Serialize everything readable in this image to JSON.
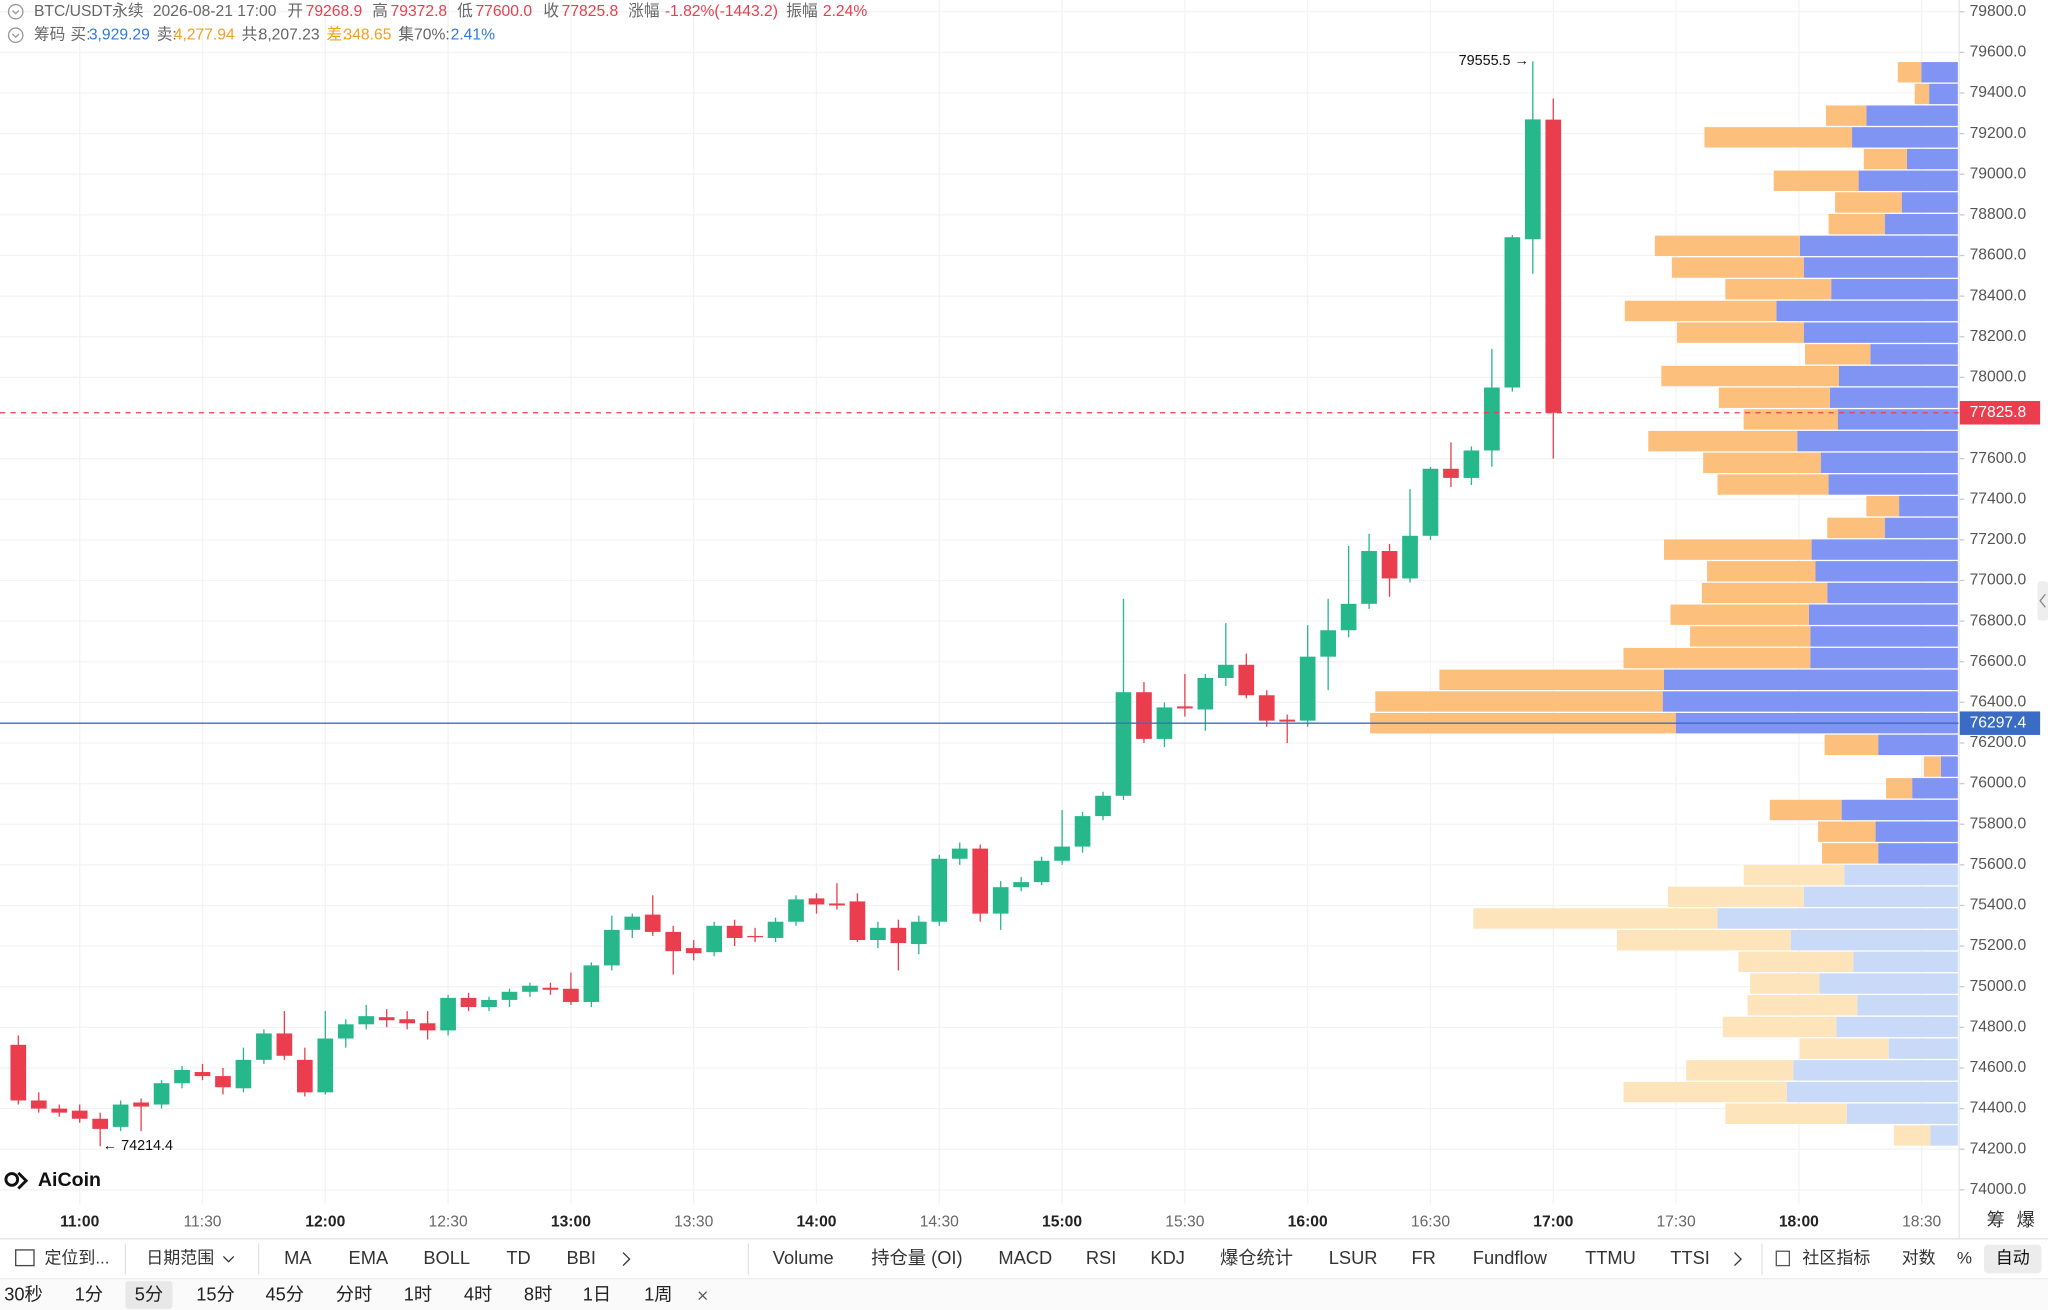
{
  "header": {
    "symbol": "BTC/USDT永续",
    "datetime": "2026-08-21 17:00",
    "open_label": "开",
    "open": "79268.9",
    "high_label": "高",
    "high": "79372.8",
    "low_label": "低",
    "low": "77600.0",
    "close_label": "收",
    "close": "77825.8",
    "change_label": "涨幅",
    "change": "-1.82%(-1443.2)",
    "amplitude_label": "振幅",
    "amplitude": "2.24%",
    "chip_label": "筹码",
    "buy_label": "买:",
    "buy": "3,929.29",
    "sell_label": "卖:",
    "sell": "4,277.94",
    "total_label": "共:",
    "total": "8,207.23",
    "diff_label": "差:",
    "diff": "348.65",
    "concentration_label": "集70%:",
    "concentration": "2.41%"
  },
  "chart_data": {
    "type": "candlestick",
    "x": [
      "10:45",
      "10:50",
      "10:55",
      "11:00",
      "11:05",
      "11:10",
      "11:15",
      "11:20",
      "11:25",
      "11:30",
      "11:35",
      "11:40",
      "11:45",
      "11:50",
      "11:55",
      "12:00",
      "12:05",
      "12:10",
      "12:15",
      "12:20",
      "12:25",
      "12:30",
      "12:35",
      "12:40",
      "12:45",
      "12:50",
      "12:55",
      "13:00",
      "13:05",
      "13:10",
      "13:15",
      "13:20",
      "13:25",
      "13:30",
      "13:35",
      "13:40",
      "13:45",
      "13:50",
      "13:55",
      "14:00",
      "14:05",
      "14:10",
      "14:15",
      "14:20",
      "14:25",
      "14:30",
      "14:35",
      "14:40",
      "14:45",
      "14:50",
      "14:55",
      "15:00",
      "15:05",
      "15:10",
      "15:15",
      "15:20",
      "15:25",
      "15:30",
      "15:35",
      "15:40",
      "15:45",
      "15:50",
      "15:55",
      "16:00",
      "16:05",
      "16:10",
      "16:15",
      "16:20",
      "16:25",
      "16:30",
      "16:35",
      "16:40",
      "16:45",
      "16:50",
      "16:55",
      "17:00"
    ],
    "open": [
      74714,
      74440,
      74400,
      74390,
      74350,
      74310,
      74430,
      74420,
      74525,
      74580,
      74560,
      74500,
      74640,
      74770,
      74640,
      74480,
      74745,
      74815,
      74850,
      74840,
      74820,
      74785,
      74945,
      74900,
      74935,
      74975,
      74995,
      74990,
      74925,
      75105,
      75280,
      75355,
      75270,
      75190,
      75170,
      75300,
      75250,
      75240,
      75320,
      75435,
      75410,
      75420,
      75230,
      75290,
      75210,
      75320,
      75630,
      75680,
      75360,
      75490,
      75515,
      75620,
      75690,
      75840,
      75940,
      76450,
      76220,
      76380,
      76365,
      76520,
      76585,
      76435,
      76315,
      76310,
      76625,
      76755,
      76885,
      77145,
      77010,
      77220,
      77550,
      77505,
      77640,
      77950,
      78680,
      79268.9
    ],
    "high": [
      74760,
      74480,
      74420,
      74420,
      74380,
      74440,
      74450,
      74540,
      74610,
      74620,
      74600,
      74700,
      74790,
      74880,
      74700,
      74880,
      74840,
      74910,
      74890,
      74880,
      74880,
      74960,
      74970,
      74950,
      74990,
      75020,
      75020,
      75070,
      75120,
      75350,
      75360,
      75450,
      75300,
      75230,
      75320,
      75330,
      75290,
      75340,
      75450,
      75460,
      75510,
      75460,
      75320,
      75330,
      75350,
      75650,
      75710,
      75700,
      75520,
      75540,
      75640,
      75870,
      75860,
      75960,
      76910,
      76500,
      76400,
      76540,
      76540,
      76790,
      76640,
      76460,
      76340,
      76780,
      76910,
      77170,
      77230,
      77180,
      77450,
      77560,
      77680,
      77660,
      78140,
      78700,
      79555.5,
      79372.8
    ],
    "low": [
      74420,
      74380,
      74360,
      74330,
      74214.4,
      74290,
      74290,
      74400,
      74500,
      74540,
      74470,
      74480,
      74620,
      74640,
      74460,
      74470,
      74700,
      74790,
      74800,
      74790,
      74740,
      74760,
      74880,
      74880,
      74900,
      74950,
      74960,
      74910,
      74900,
      75080,
      75240,
      75250,
      75060,
      75130,
      75150,
      75200,
      75220,
      75220,
      75300,
      75360,
      75380,
      75220,
      75190,
      75080,
      75160,
      75300,
      75600,
      75320,
      75280,
      75470,
      75500,
      75600,
      75660,
      75820,
      75920,
      76200,
      76180,
      76330,
      76260,
      76480,
      76420,
      76280,
      76200,
      76280,
      76460,
      76720,
      76860,
      76920,
      76990,
      77200,
      77460,
      77470,
      77560,
      77930,
      78510,
      77600
    ],
    "close": [
      74440,
      74400,
      74380,
      74350,
      74300,
      74420,
      74410,
      74525,
      74590,
      74560,
      74505,
      74640,
      74770,
      74660,
      74480,
      74745,
      74815,
      74855,
      74835,
      74820,
      74785,
      74945,
      74900,
      74935,
      74975,
      75005,
      74985,
      74925,
      75105,
      75280,
      75345,
      75270,
      75175,
      75165,
      75300,
      75240,
      75245,
      75320,
      75430,
      75405,
      75400,
      75230,
      75290,
      75215,
      75320,
      75630,
      75680,
      75360,
      75490,
      75515,
      75620,
      75690,
      75840,
      75940,
      76450,
      76220,
      76375,
      76370,
      76520,
      76585,
      76435,
      76310,
      76305,
      76625,
      76755,
      76885,
      77145,
      77010,
      77220,
      77550,
      77505,
      77640,
      77950,
      78690,
      79270,
      77825.8
    ],
    "up_color": "#26b88a",
    "down_color": "#ea3e4e",
    "ylim": [
      74000,
      79800
    ],
    "yticks": [
      {
        "value": 74000,
        "label": "74000.0"
      },
      {
        "value": 74200,
        "label": "74200.0"
      },
      {
        "value": 74400,
        "label": "74400.0"
      },
      {
        "value": 74600,
        "label": "74600.0"
      },
      {
        "value": 74800,
        "label": "74800.0"
      },
      {
        "value": 75000,
        "label": "75000.0"
      },
      {
        "value": 75200,
        "label": "75200.0"
      },
      {
        "value": 75400,
        "label": "75400.0"
      },
      {
        "value": 75600,
        "label": "75600.0"
      },
      {
        "value": 75800,
        "label": "75800.0"
      },
      {
        "value": 76000,
        "label": "76000.0"
      },
      {
        "value": 76200,
        "label": "76200.0"
      },
      {
        "value": 76400,
        "label": "76400.0"
      },
      {
        "value": 76600,
        "label": "76600.0"
      },
      {
        "value": 76800,
        "label": "76800.0"
      },
      {
        "value": 77000,
        "label": "77000.0"
      },
      {
        "value": 77200,
        "label": "77200.0"
      },
      {
        "value": 77400,
        "label": "77400.0"
      },
      {
        "value": 77600,
        "label": "77600.0"
      },
      {
        "value": 77800,
        "label": "77800.0"
      },
      {
        "value": 78000,
        "label": "78000.0"
      },
      {
        "value": 78200,
        "label": "78200.0"
      },
      {
        "value": 78400,
        "label": "78400.0"
      },
      {
        "value": 78600,
        "label": "78600.0"
      },
      {
        "value": 78800,
        "label": "78800.0"
      },
      {
        "value": 79000,
        "label": "79000.0"
      },
      {
        "value": 79200,
        "label": "79200.0"
      },
      {
        "value": 79400,
        "label": "79400.0"
      },
      {
        "value": 79600,
        "label": "79600.0"
      },
      {
        "value": 79800,
        "label": "79800.0"
      }
    ],
    "xticks": [
      "11:00",
      "11:30",
      "12:00",
      "12:30",
      "13:00",
      "13:30",
      "14:00",
      "14:30",
      "15:00",
      "15:30",
      "16:00",
      "16:30",
      "17:00",
      "17:30",
      "18:00",
      "18:30"
    ],
    "grid": true,
    "last_price": {
      "value": 77825.8,
      "color": "#ea3e4e"
    },
    "poc": {
      "value": 76297.4,
      "color": "#3b6cc5"
    },
    "high_annotation": {
      "value": 79555.5,
      "label": "79555.5 →"
    },
    "low_annotation": {
      "value": 74214.4,
      "label": "← 74214.4"
    },
    "volume_profile": {
      "buy_values": [
        21,
        85,
        131,
        126,
        53,
        93,
        77,
        106,
        80,
        128,
        184,
        118,
        87,
        61,
        63,
        89,
        35,
        13,
        61,
        216,
        226,
        225,
        113,
        113,
        114,
        100,
        109,
        112,
        56,
        45,
        99,
        105,
        123,
        92,
        98,
        91,
        67,
        118,
        139,
        97,
        118,
        121,
        56,
        43,
        76,
        39,
        81,
        70,
        22,
        28
      ],
      "sell_values": [
        28,
        93,
        125,
        82,
        68,
        87,
        84,
        53,
        88,
        133,
        187,
        104,
        77,
        43,
        44,
        55,
        20,
        13,
        41,
        234,
        220,
        172,
        143,
        92,
        106,
        96,
        83,
        113,
        44,
        25,
        85,
        90,
        114,
        72,
        85,
        136,
        50,
        97,
        116,
        81,
        101,
        111,
        43,
        51,
        65,
        33,
        113,
        31,
        11,
        18
      ],
      "buy_color": "#8094f4",
      "sell_color": "#fdbf7c",
      "light_buy_color": "#c8daf8",
      "light_sell_color": "#fde4bb",
      "value_area_low": 75650
    }
  },
  "logo": "AiCoin",
  "axis_tabs": [
    "筹",
    "爆"
  ],
  "toolbar": {
    "locate": "定位到...",
    "date_range": "日期范围",
    "indicators": [
      "MA",
      "EMA",
      "BOLL",
      "TD",
      "BBI"
    ],
    "sub_indicators": [
      "Volume",
      "持仓量 (OI)",
      "MACD",
      "RSI",
      "KDJ",
      "爆仓统计",
      "LSUR",
      "FR",
      "Fundflow",
      "TTMU",
      "TTSI"
    ],
    "community": "社区指标",
    "log": "对数",
    "percent": "%",
    "auto": "自动"
  },
  "timeframes": [
    "30秒",
    "1分",
    "5分",
    "15分",
    "45分",
    "分时",
    "1时",
    "4时",
    "8时",
    "1日",
    "1周"
  ],
  "selected_timeframe": 2
}
